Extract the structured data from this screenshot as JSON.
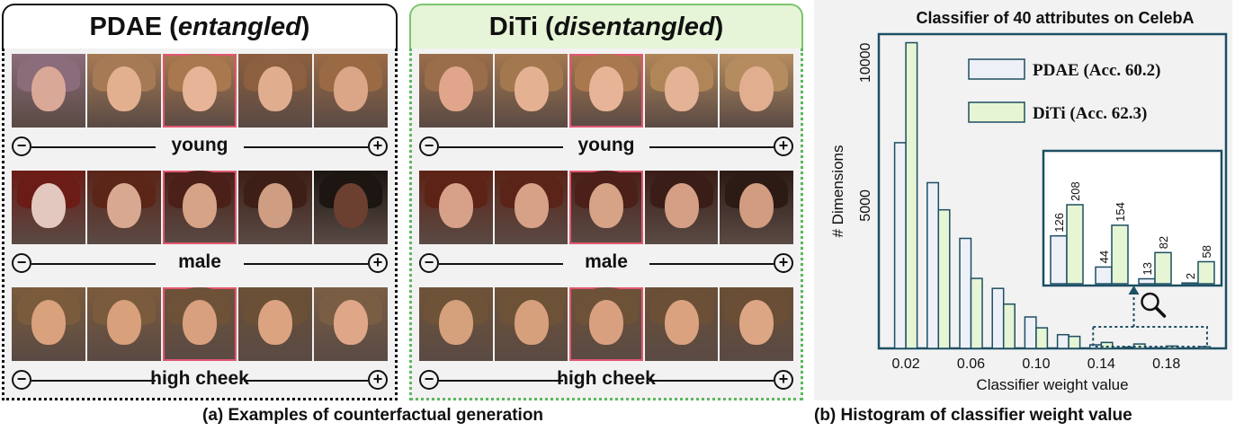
{
  "panels": [
    {
      "title_main": "PDAE (",
      "title_em": "entangled",
      "title_end": ")",
      "rows": [
        {
          "attribute": "young",
          "skin": [
            "#d9a897",
            "#e3b08f",
            "#e7b497",
            "#e1ad8f",
            "#dba587"
          ],
          "hair": [
            "#8a6c7a",
            "#a67a55",
            "#a9784f",
            "#8b5f3f",
            "#9a6a45"
          ]
        },
        {
          "attribute": "male",
          "skin": [
            "#e2c8bf",
            "#d9a890",
            "#d6a386",
            "#cf9d82",
            "#6b4030"
          ],
          "hair": [
            "#6b1c16",
            "#5b2518",
            "#4a2018",
            "#3d1f17",
            "#1c1512"
          ]
        },
        {
          "attribute": "high cheek",
          "skin": [
            "#d9a27c",
            "#d8a07b",
            "#d9a07f",
            "#dca381",
            "#dfa788"
          ],
          "hair": [
            "#7a5b3c",
            "#7b5b3d",
            "#6d5238",
            "#6a5036",
            "#7a5e44"
          ]
        }
      ]
    },
    {
      "title_main": "DiTi (",
      "title_em": "disentangled",
      "title_end": ")",
      "rows": [
        {
          "attribute": "young",
          "skin": [
            "#e0a58b",
            "#e5b193",
            "#e7b497",
            "#e4b295",
            "#e1ae90"
          ],
          "hair": [
            "#9a6d4b",
            "#a3784f",
            "#a9784f",
            "#b08659",
            "#b48c60"
          ]
        },
        {
          "attribute": "male",
          "skin": [
            "#d7a088",
            "#d6a187",
            "#d6a386",
            "#d49f84",
            "#d29c80"
          ],
          "hair": [
            "#5d2316",
            "#5a2418",
            "#4a2018",
            "#3a1d16",
            "#2c1a15"
          ]
        },
        {
          "attribute": "high cheek",
          "skin": [
            "#d5a07c",
            "#d7a07c",
            "#d9a07f",
            "#daa27e",
            "#dca684"
          ],
          "hair": [
            "#6f5338",
            "#6e5237",
            "#6d5238",
            "#6b4f36",
            "#6a4e35"
          ]
        }
      ]
    }
  ],
  "slider_minus": "−",
  "slider_plus": "+",
  "captions": {
    "a": "(a) Examples of counterfactual generation",
    "b": "(b) Histogram of classifier weight value"
  },
  "chart_data": {
    "type": "bar",
    "title": "Classifier of 40 attributes on CelebA",
    "xlabel": "Classifier weight value",
    "ylabel": "# Dimensions",
    "x_ticks": [
      "0.02",
      "0.06",
      "0.10",
      "0.14",
      "0.18"
    ],
    "y_ticks": [
      "5000",
      "10000"
    ],
    "ylim": [
      0,
      11000
    ],
    "bin_centers": [
      0.02,
      0.04,
      0.06,
      0.08,
      0.1,
      0.12,
      0.14,
      0.16,
      0.18,
      0.2
    ],
    "series": [
      {
        "name": "PDAE",
        "legend_label": "PDAE (Acc. 60.2)",
        "color": "#eef0f8",
        "values": [
          7200,
          5800,
          3850,
          2100,
          1100,
          480,
          126,
          44,
          13,
          2
        ]
      },
      {
        "name": "DiTi",
        "legend_label": "DiTi (Acc. 62.3)",
        "color": "#e6f5d3",
        "values": [
          10700,
          4850,
          2450,
          1550,
          720,
          420,
          208,
          154,
          82,
          58
        ]
      }
    ],
    "inset": {
      "labels_pdae": [
        "126",
        "44",
        "13",
        "2"
      ],
      "labels_diti": [
        "208",
        "154",
        "82",
        "58"
      ],
      "pdae_values": [
        126,
        44,
        13,
        2
      ],
      "diti_values": [
        208,
        154,
        82,
        58
      ]
    },
    "colors": {
      "frame": "#1d4e63",
      "bar_edge": "#1d4e63"
    }
  }
}
